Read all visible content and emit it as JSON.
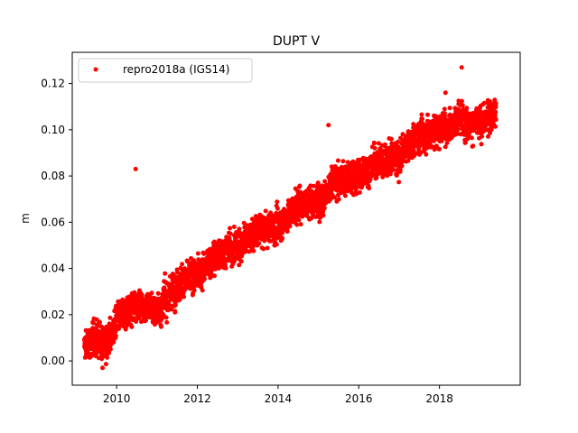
{
  "chart_data": {
    "type": "scatter",
    "title": "DUPT V",
    "xlabel": "",
    "ylabel": "m",
    "xlim": [
      2008.9,
      2020.0
    ],
    "ylim": [
      -0.0105,
      0.1335
    ],
    "x_ticks": [
      2010,
      2012,
      2014,
      2016,
      2018
    ],
    "x_tick_labels": [
      "2010",
      "2012",
      "2014",
      "2016",
      "2018"
    ],
    "y_ticks": [
      0.0,
      0.02,
      0.04,
      0.06,
      0.08,
      0.1,
      0.12
    ],
    "y_tick_labels": [
      "0.00",
      "0.02",
      "0.04",
      "0.06",
      "0.08",
      "0.10",
      "0.12"
    ],
    "grid": false,
    "legend_position": "top-left",
    "colors": {
      "series": "#ff0000"
    },
    "series": [
      {
        "name": "repro2018a (IGS14)",
        "trend_points": [
          {
            "x": 2009.2,
            "y": 0.006
          },
          {
            "x": 2009.5,
            "y": 0.01
          },
          {
            "x": 2009.8,
            "y": 0.008
          },
          {
            "x": 2010.0,
            "y": 0.017
          },
          {
            "x": 2010.5,
            "y": 0.025
          },
          {
            "x": 2011.0,
            "y": 0.022
          },
          {
            "x": 2011.5,
            "y": 0.033
          },
          {
            "x": 2012.0,
            "y": 0.037
          },
          {
            "x": 2012.5,
            "y": 0.046
          },
          {
            "x": 2013.0,
            "y": 0.05
          },
          {
            "x": 2013.5,
            "y": 0.056
          },
          {
            "x": 2014.0,
            "y": 0.058
          },
          {
            "x": 2014.5,
            "y": 0.068
          },
          {
            "x": 2015.0,
            "y": 0.07
          },
          {
            "x": 2015.5,
            "y": 0.078
          },
          {
            "x": 2016.0,
            "y": 0.08
          },
          {
            "x": 2016.5,
            "y": 0.087
          },
          {
            "x": 2017.0,
            "y": 0.088
          },
          {
            "x": 2017.5,
            "y": 0.098
          },
          {
            "x": 2018.0,
            "y": 0.1
          },
          {
            "x": 2018.5,
            "y": 0.105
          },
          {
            "x": 2019.0,
            "y": 0.102
          },
          {
            "x": 2019.4,
            "y": 0.108
          }
        ],
        "noise_amplitude": 0.006,
        "outliers": [
          {
            "x": 2010.47,
            "y": 0.083
          },
          {
            "x": 2015.25,
            "y": 0.102
          },
          {
            "x": 2018.55,
            "y": 0.127
          },
          {
            "x": 2009.65,
            "y": -0.003
          },
          {
            "x": 2018.15,
            "y": 0.116
          }
        ]
      }
    ]
  }
}
